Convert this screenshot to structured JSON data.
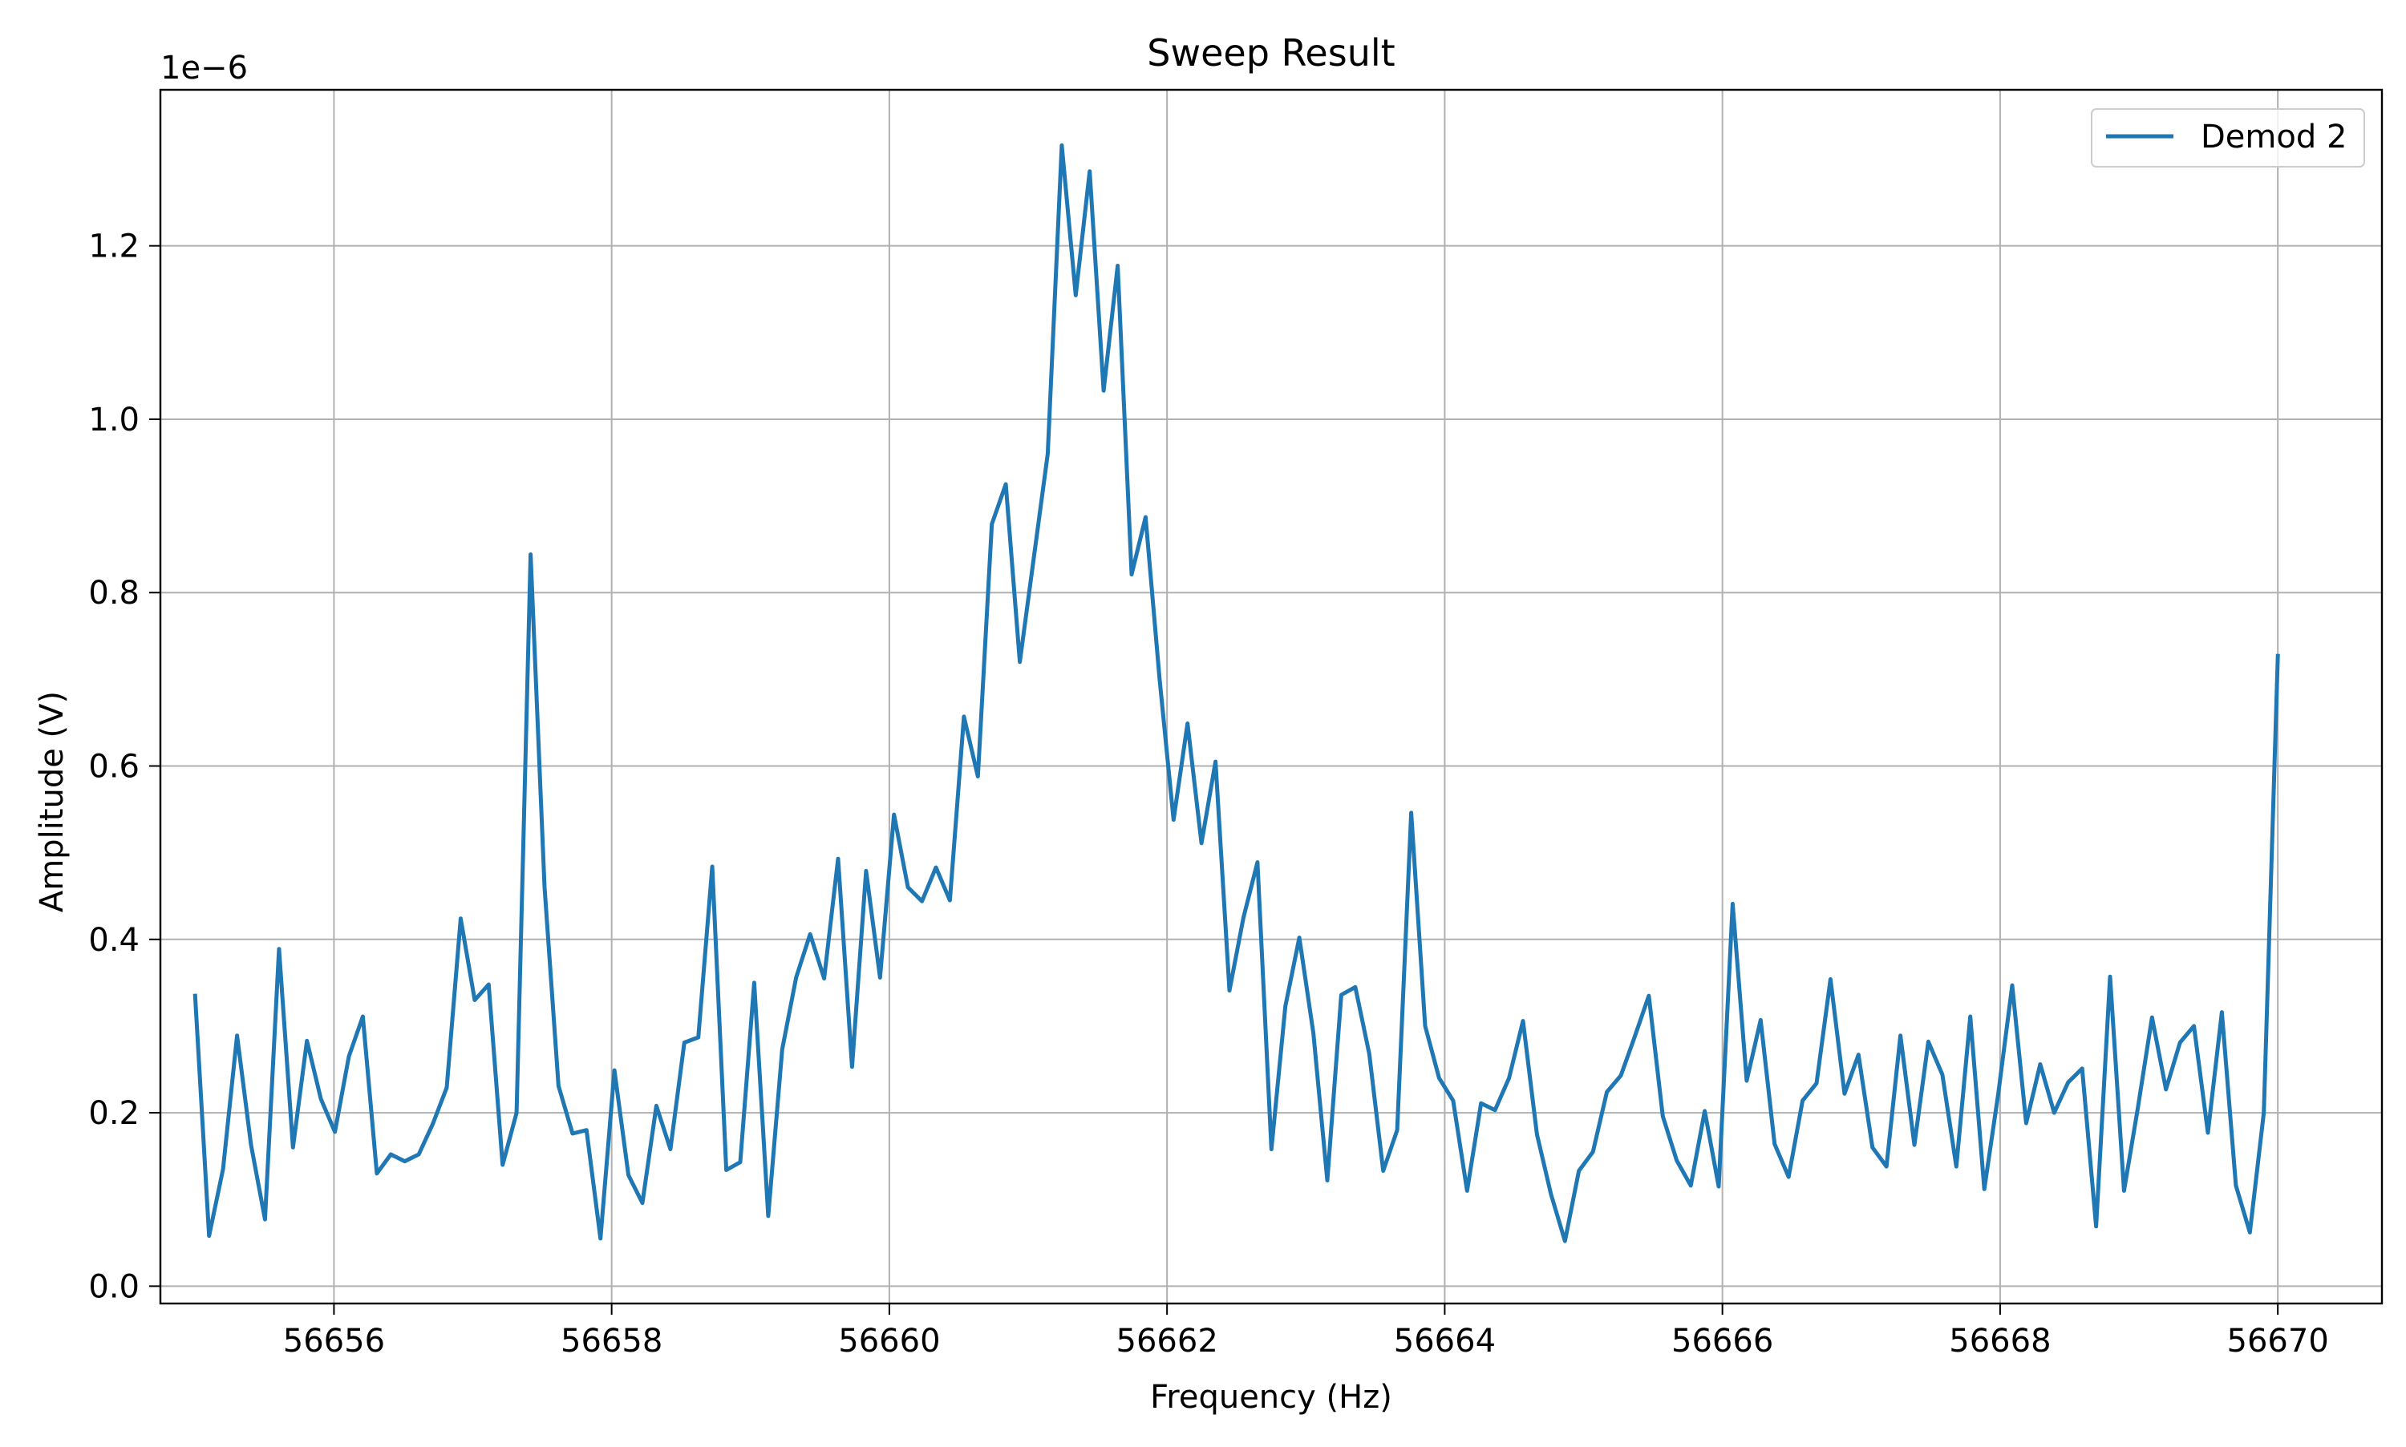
{
  "chart_data": {
    "type": "line",
    "title": "Sweep Result",
    "xlabel": "Frequency (Hz)",
    "ylabel": "Amplitude (V)",
    "y_offset_label": "1e−6",
    "xlim": [
      56654.75,
      56670.75
    ],
    "ylim": [
      -0.02,
      1.38
    ],
    "x_ticks": [
      56656,
      56658,
      56660,
      56662,
      56664,
      56666,
      56668,
      56670
    ],
    "y_ticks": [
      0.0,
      0.2,
      0.4,
      0.6,
      0.8,
      1.0,
      1.2
    ],
    "y_tick_labels": [
      "0.0",
      "0.2",
      "0.4",
      "0.6",
      "0.8",
      "1.0",
      "1.2"
    ],
    "grid": true,
    "legend_position": "top-right",
    "series": [
      {
        "name": "Demod 2",
        "color": "#1f77b4",
        "x_start": 56655.0,
        "x_end": 56670.0,
        "y_scale": "1e-6",
        "values": [
          0.335,
          0.058,
          0.135,
          0.289,
          0.163,
          0.077,
          0.389,
          0.16,
          0.283,
          0.216,
          0.178,
          0.265,
          0.311,
          0.13,
          0.152,
          0.144,
          0.152,
          0.187,
          0.229,
          0.424,
          0.33,
          0.348,
          0.14,
          0.2,
          0.844,
          0.46,
          0.231,
          0.176,
          0.18,
          0.055,
          0.249,
          0.128,
          0.096,
          0.208,
          0.158,
          0.281,
          0.287,
          0.484,
          0.134,
          0.143,
          0.35,
          0.081,
          0.273,
          0.356,
          0.406,
          0.355,
          0.493,
          0.253,
          0.479,
          0.356,
          0.544,
          0.46,
          0.444,
          0.483,
          0.445,
          0.657,
          0.588,
          0.879,
          0.925,
          0.72,
          0.84,
          0.96,
          1.316,
          1.143,
          1.286,
          1.033,
          1.177,
          0.821,
          0.887,
          0.7,
          0.538,
          0.649,
          0.511,
          0.605,
          0.341,
          0.425,
          0.489,
          0.158,
          0.323,
          0.402,
          0.292,
          0.122,
          0.336,
          0.345,
          0.268,
          0.133,
          0.18,
          0.546,
          0.3,
          0.24,
          0.214,
          0.11,
          0.211,
          0.203,
          0.24,
          0.306,
          0.175,
          0.106,
          0.052,
          0.133,
          0.155,
          0.224,
          0.243,
          0.288,
          0.335,
          0.196,
          0.145,
          0.116,
          0.202,
          0.115,
          0.441,
          0.237,
          0.307,
          0.164,
          0.126,
          0.214,
          0.234,
          0.354,
          0.222,
          0.267,
          0.16,
          0.138,
          0.289,
          0.163,
          0.282,
          0.244,
          0.138,
          0.311,
          0.112,
          0.222,
          0.347,
          0.188,
          0.256,
          0.2,
          0.235,
          0.251,
          0.069,
          0.357,
          0.11,
          0.207,
          0.31,
          0.227,
          0.281,
          0.3,
          0.177,
          0.316,
          0.116,
          0.062,
          0.2,
          0.727
        ]
      }
    ]
  }
}
